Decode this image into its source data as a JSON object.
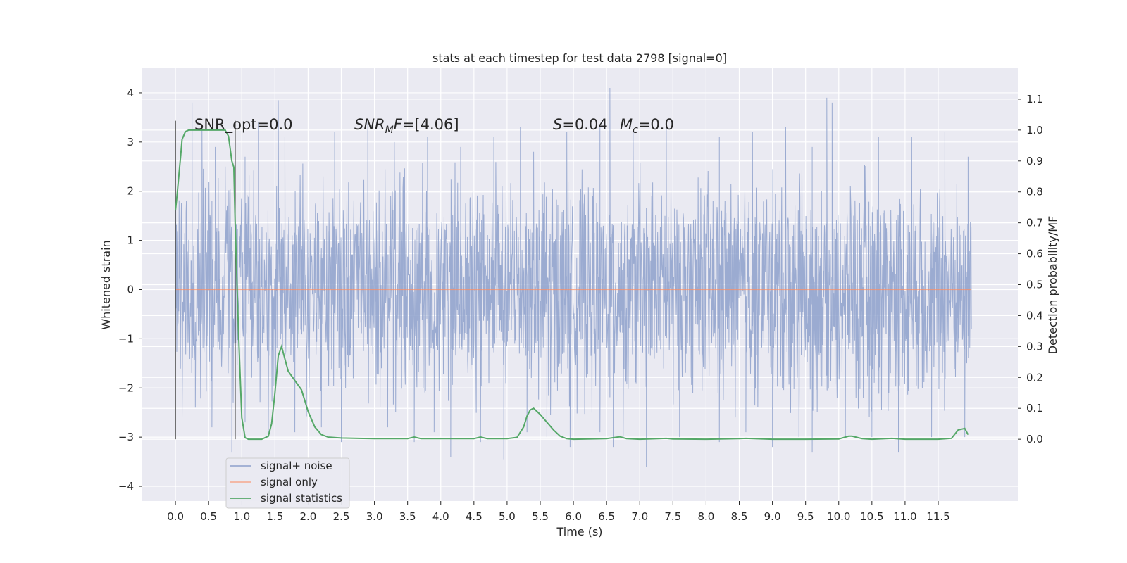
{
  "chart_data": {
    "type": "line",
    "title": "stats at each timestep for test data 2798 [signal=0]",
    "xlabel": "Time (s)",
    "ylabel_left": "Whitened strain",
    "ylabel_right": "Detection probability/MF",
    "xlim": [
      -0.5,
      12.7
    ],
    "ylim_left": [
      -4.3,
      4.5
    ],
    "ylim_right": [
      -0.2,
      1.2
    ],
    "x_ticks": [
      "0.0",
      "0.5",
      "1.0",
      "1.5",
      "2.0",
      "2.5",
      "3.0",
      "3.5",
      "4.0",
      "4.5",
      "5.0",
      "5.5",
      "6.0",
      "6.5",
      "7.0",
      "7.5",
      "8.0",
      "8.5",
      "9.0",
      "9.5",
      "10.0",
      "10.5",
      "11.0",
      "11.5"
    ],
    "y_ticks_left": [
      "4",
      "3",
      "2",
      "1",
      "0",
      "−1",
      "−2",
      "−3",
      "−4"
    ],
    "y_ticks_right": [
      "1.1",
      "1.0",
      "0.9",
      "0.8",
      "0.7",
      "0.6",
      "0.5",
      "0.4",
      "0.3",
      "0.2",
      "0.1",
      "0.0"
    ],
    "grid": true,
    "legend_position": "bottom-left",
    "annotations": {
      "snr_opt": "SNR_opt=0.0",
      "snr_mf_pre": "SNR",
      "snr_mf_sub": "M",
      "snr_mf_post": "F=[4.06]",
      "s_pre": "S",
      "s_post": "=0.04",
      "mc_pre": "M",
      "mc_sub": "c",
      "mc_post": "=0.0"
    },
    "vertical_markers": [
      0.0,
      0.9
    ],
    "series": [
      {
        "name": "signal+ noise",
        "color": "#8da0cb",
        "axis": "left",
        "x_range": [
          0.0,
          12.0
        ],
        "peak_x": [
          0.1,
          0.25,
          0.4,
          0.6,
          0.75,
          1.05,
          1.25,
          1.55,
          1.65,
          2.4,
          2.9,
          3.3,
          3.8,
          4.3,
          4.8,
          5.2,
          5.4,
          5.9,
          6.4,
          6.55,
          6.9,
          7.4,
          8.2,
          8.7,
          9.2,
          9.6,
          9.82,
          9.9,
          10.6,
          11.1,
          11.6,
          11.95
        ],
        "peak_y": [
          2.2,
          3.8,
          3.3,
          2.9,
          2.5,
          2.7,
          3.4,
          3.85,
          3.1,
          3.2,
          3.4,
          3.0,
          3.1,
          2.9,
          3.1,
          3.3,
          2.8,
          3.2,
          3.3,
          4.1,
          3.2,
          3.3,
          3.1,
          3.2,
          3.3,
          2.9,
          3.9,
          3.8,
          3.1,
          3.1,
          3.2,
          2.7
        ],
        "trough_x": [
          0.1,
          0.3,
          0.55,
          0.85,
          1.05,
          1.4,
          1.8,
          2.2,
          2.5,
          3.2,
          3.6,
          3.9,
          4.15,
          4.6,
          4.95,
          5.3,
          5.6,
          5.95,
          6.4,
          6.6,
          6.75,
          7.1,
          7.6,
          8.2,
          8.6,
          9.0,
          9.4,
          9.6,
          10.1,
          10.5,
          10.9,
          11.4,
          11.9
        ],
        "trough_y": [
          -2.6,
          -2.4,
          -2.8,
          -3.3,
          -2.7,
          -3.0,
          -2.9,
          -2.8,
          -3.1,
          -2.8,
          -3.1,
          -2.9,
          -3.4,
          -3.1,
          -3.45,
          -2.9,
          -3.0,
          -3.2,
          -2.9,
          -3.2,
          -3.0,
          -3.6,
          -3.0,
          -3.1,
          -2.9,
          -3.2,
          -3.0,
          -3.3,
          -3.0,
          -3.0,
          -3.3,
          -3.0,
          -3.0
        ]
      },
      {
        "name": "signal only",
        "color": "#fc8d62",
        "axis": "left",
        "x": [
          0.0,
          12.0
        ],
        "y": [
          0.0,
          0.0
        ]
      },
      {
        "name": "signal statistics",
        "color": "#55a868",
        "axis": "right",
        "x": [
          0.0,
          0.02,
          0.05,
          0.08,
          0.1,
          0.15,
          0.2,
          0.3,
          0.4,
          0.5,
          0.6,
          0.7,
          0.75,
          0.8,
          0.85,
          0.88,
          0.9,
          0.95,
          1.0,
          1.05,
          1.1,
          1.2,
          1.3,
          1.4,
          1.45,
          1.5,
          1.55,
          1.6,
          1.65,
          1.7,
          1.8,
          1.9,
          2.0,
          2.1,
          2.2,
          2.3,
          2.5,
          3.0,
          3.5,
          3.6,
          3.7,
          4.0,
          4.5,
          4.6,
          4.7,
          5.0,
          5.15,
          5.25,
          5.3,
          5.35,
          5.4,
          5.45,
          5.5,
          5.6,
          5.7,
          5.8,
          5.9,
          6.0,
          6.5,
          6.7,
          6.8,
          7.0,
          7.4,
          7.5,
          8.0,
          8.5,
          8.6,
          9.0,
          9.5,
          10.0,
          10.15,
          10.2,
          10.35,
          10.5,
          10.8,
          11.0,
          11.5,
          11.7,
          11.8,
          11.9,
          11.95
        ],
        "y": [
          0.74,
          0.78,
          0.85,
          0.92,
          0.97,
          0.995,
          1.0,
          1.0,
          1.0,
          1.0,
          1.0,
          1.0,
          1.0,
          0.98,
          0.9,
          0.88,
          0.7,
          0.35,
          0.07,
          0.005,
          0.0,
          0.0,
          0.0,
          0.01,
          0.05,
          0.15,
          0.27,
          0.3,
          0.26,
          0.22,
          0.19,
          0.16,
          0.09,
          0.04,
          0.015,
          0.007,
          0.004,
          0.002,
          0.002,
          0.007,
          0.002,
          0.002,
          0.002,
          0.007,
          0.002,
          0.002,
          0.006,
          0.04,
          0.075,
          0.095,
          0.1,
          0.09,
          0.08,
          0.055,
          0.03,
          0.01,
          0.002,
          0.0,
          0.002,
          0.008,
          0.002,
          0.0,
          0.003,
          0.001,
          0.0,
          0.002,
          0.003,
          0.0,
          0.0,
          0.001,
          0.01,
          0.01,
          0.002,
          0.0,
          0.003,
          0.0,
          0.0,
          0.003,
          0.03,
          0.035,
          0.015
        ]
      }
    ]
  }
}
